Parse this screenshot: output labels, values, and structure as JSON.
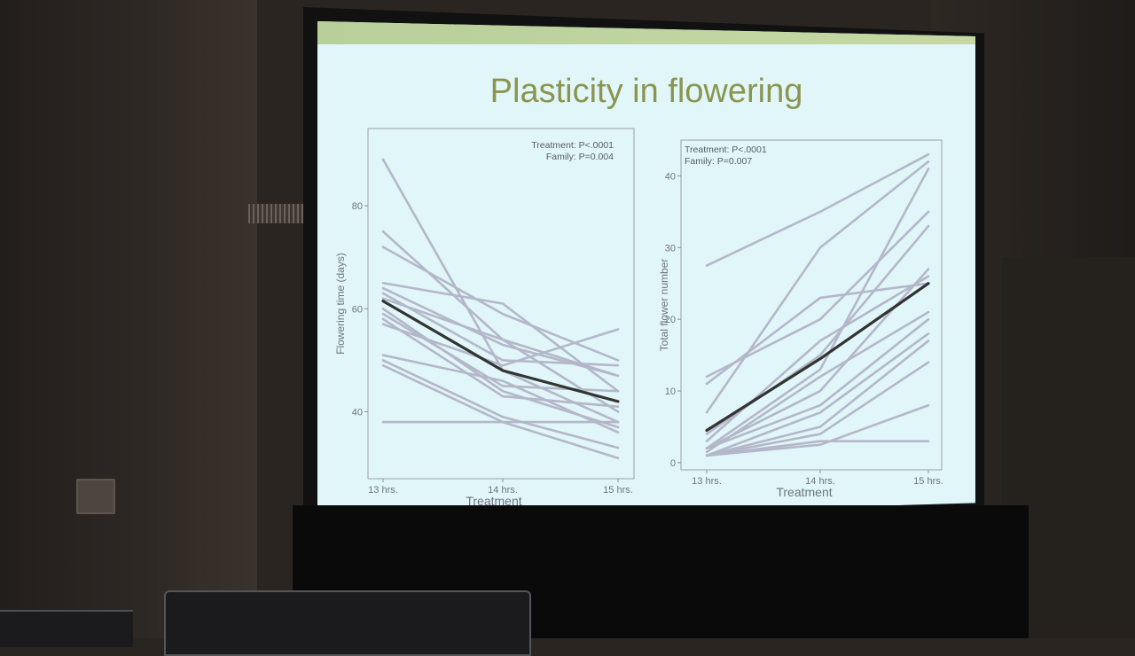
{
  "slide": {
    "title": "Plasticity in flowering"
  },
  "chart_data": [
    {
      "type": "line",
      "xlabel": "Treatment",
      "ylabel": "Flowering time (days)",
      "categories": [
        "13 hrs.",
        "14 hrs.",
        "15 hrs."
      ],
      "yticks": [
        40,
        60,
        80
      ],
      "ylim": [
        27,
        95
      ],
      "annotation": [
        "Treatment: P<.0001",
        "Family: P=0.004"
      ],
      "family_series": [
        [
          89,
          48,
          38
        ],
        [
          75,
          54,
          40
        ],
        [
          72,
          59,
          50
        ],
        [
          65,
          61,
          44
        ],
        [
          64,
          53,
          47
        ],
        [
          63,
          50,
          49
        ],
        [
          62,
          54,
          47
        ],
        [
          59,
          45,
          44
        ],
        [
          57,
          49,
          56
        ],
        [
          51,
          46,
          36
        ],
        [
          50,
          39,
          33
        ],
        [
          49,
          38,
          31
        ],
        [
          38,
          38,
          38
        ],
        [
          60,
          44,
          37
        ],
        [
          58,
          43,
          41
        ]
      ],
      "mean": {
        "values": [
          61.5,
          48,
          42
        ],
        "color": "#333333"
      },
      "colors": {
        "family": "#b4b7c9",
        "mean": "#333333"
      }
    },
    {
      "type": "line",
      "xlabel": "Treatment",
      "ylabel": "Total flower number",
      "categories": [
        "13 hrs.",
        "14 hrs.",
        "15 hrs."
      ],
      "yticks": [
        0,
        10,
        20,
        30,
        40
      ],
      "ylim": [
        -1,
        45
      ],
      "annotation": [
        "Treatment: P<.0001",
        "Family: P=0.007"
      ],
      "family_series": [
        [
          27.5,
          35,
          43
        ],
        [
          12,
          20,
          35
        ],
        [
          11,
          23,
          25
        ],
        [
          7,
          30,
          42
        ],
        [
          4,
          15,
          33
        ],
        [
          3,
          17,
          26
        ],
        [
          2,
          10,
          27
        ],
        [
          2,
          8,
          20
        ],
        [
          1.5,
          12,
          21
        ],
        [
          1,
          5,
          17
        ],
        [
          1,
          4,
          14
        ],
        [
          1,
          2.5,
          8
        ],
        [
          1,
          3,
          3
        ],
        [
          2,
          13,
          41
        ],
        [
          1,
          7,
          18
        ]
      ],
      "mean": {
        "values": [
          4.5,
          14.5,
          25
        ],
        "color": "#333333"
      },
      "colors": {
        "family": "#b4b7c9",
        "mean": "#333333"
      }
    }
  ]
}
